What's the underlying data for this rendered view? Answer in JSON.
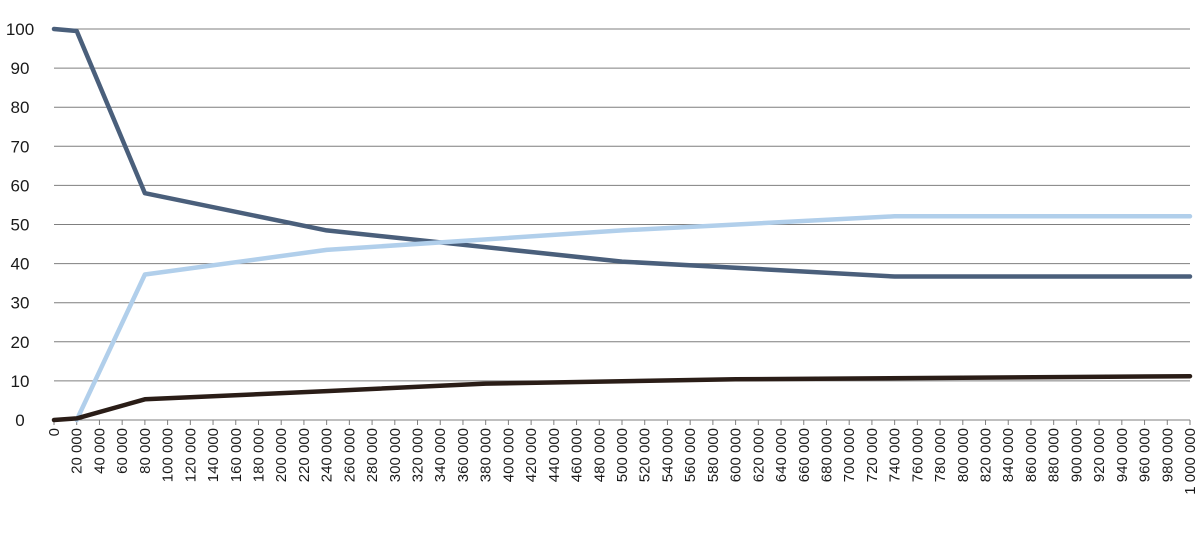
{
  "chart_data": {
    "type": "line",
    "title": "",
    "xlabel": "",
    "ylabel": "",
    "xlim": [
      0,
      1000000
    ],
    "ylim": [
      0,
      100
    ],
    "y_ticks": [
      0,
      10,
      20,
      30,
      40,
      50,
      60,
      70,
      80,
      90,
      100
    ],
    "x_ticks": [
      0,
      20000,
      40000,
      60000,
      80000,
      100000,
      120000,
      140000,
      160000,
      180000,
      200000,
      220000,
      240000,
      260000,
      280000,
      300000,
      320000,
      340000,
      360000,
      380000,
      400000,
      420000,
      440000,
      460000,
      480000,
      500000,
      520000,
      540000,
      560000,
      580000,
      600000,
      620000,
      640000,
      660000,
      680000,
      700000,
      720000,
      740000,
      760000,
      780000,
      800000,
      820000,
      840000,
      860000,
      880000,
      900000,
      920000,
      940000,
      960000,
      980000,
      1000000
    ],
    "x_tick_labels": [
      "0",
      "20 000",
      "40 000",
      "60 000",
      "80 000",
      "100 000",
      "120 000",
      "140 000",
      "160 000",
      "180 000",
      "200 000",
      "220 000",
      "240 000",
      "260 000",
      "280 000",
      "300 000",
      "320 000",
      "340 000",
      "360 000",
      "380 000",
      "400 000",
      "420 000",
      "440 000",
      "460 000",
      "480 000",
      "500 000",
      "520 000",
      "540 000",
      "560 000",
      "580 000",
      "600 000",
      "620 000",
      "640 000",
      "660 000",
      "680 000",
      "700 000",
      "720 000",
      "740 000",
      "760 000",
      "780 000",
      "800 000",
      "820 000",
      "840 000",
      "860 000",
      "880 000",
      "900 000",
      "920 000",
      "940 000",
      "960 000",
      "980 000",
      "1 000 000"
    ],
    "grid": true,
    "legend": "none",
    "series": [
      {
        "color": "#4a5f7b",
        "x": [
          0,
          20000,
          80000,
          240000,
          500000,
          740000,
          1000000
        ],
        "y": [
          100,
          99.5,
          58,
          48.5,
          40.5,
          36.7,
          36.7
        ]
      },
      {
        "color": "#b1cfeb",
        "x": [
          20000,
          80000,
          240000,
          500000,
          740000,
          1000000
        ],
        "y": [
          0,
          37.2,
          43.5,
          48.5,
          52.1,
          52.1
        ]
      },
      {
        "color": "#2a1d17",
        "x": [
          0,
          20000,
          80000,
          240000,
          380000,
          600000,
          1000000
        ],
        "y": [
          0,
          0.4,
          5.3,
          7.4,
          9.3,
          10.4,
          11.2
        ]
      }
    ]
  }
}
